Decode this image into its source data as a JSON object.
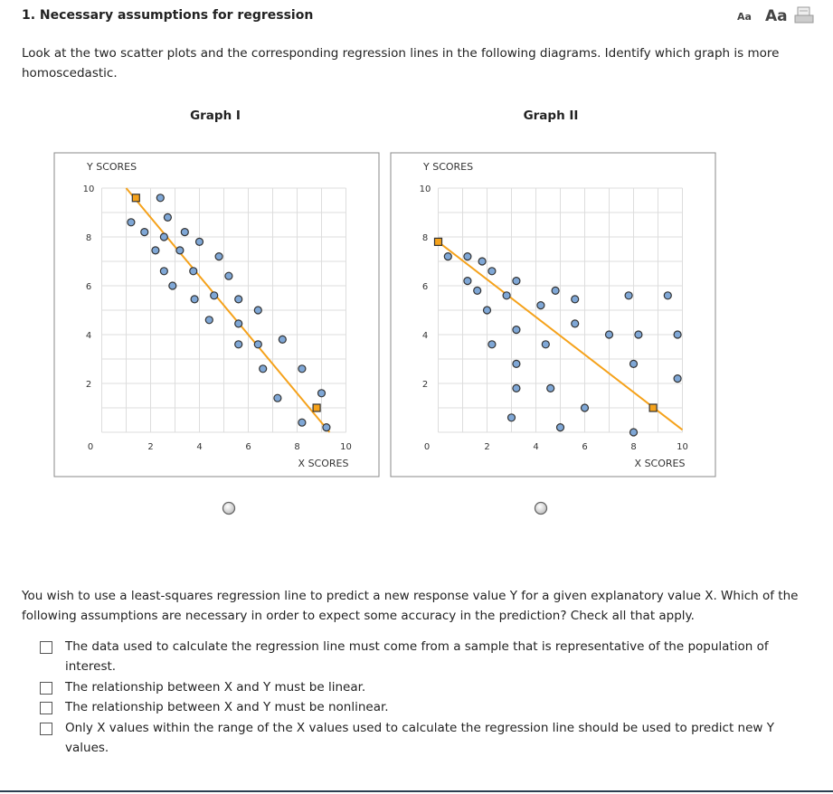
{
  "header": {
    "title": "1. Necessary assumptions for regression",
    "font_small": "Aa",
    "font_large": "Aa"
  },
  "question1": {
    "text": "Look at the two scatter plots and the corresponding regression lines in the following diagrams. Identify which graph is more homoscedastic.",
    "graphs": [
      {
        "type": "scatter",
        "title": "Graph I",
        "x_label": "X SCORES",
        "y_label": "Y SCORES",
        "x": [
          2.4,
          2.7,
          1.2,
          1.75,
          3.4,
          2.55,
          4.0,
          2.2,
          3.2,
          4.8,
          2.55,
          3.75,
          5.2,
          2.9,
          4.6,
          3.8,
          5.6,
          6.4,
          4.4,
          5.6,
          7.4,
          5.6,
          6.4,
          6.6,
          8.2,
          9.0,
          7.2,
          8.2,
          9.2
        ],
        "y": [
          9.6,
          8.8,
          8.6,
          8.2,
          8.2,
          8.0,
          7.8,
          7.45,
          7.45,
          7.2,
          6.6,
          6.6,
          6.4,
          6.0,
          5.6,
          5.45,
          5.45,
          5.0,
          4.6,
          4.45,
          3.8,
          3.6,
          3.6,
          2.6,
          2.6,
          1.6,
          1.4,
          0.4,
          0.2
        ],
        "color": "#7fa7d6",
        "line": {
          "x": [
            1.0,
            9.33
          ],
          "y": [
            10,
            0
          ],
          "color": "#f5a21b"
        },
        "markers": {
          "x": [
            1.4,
            8.8
          ],
          "y": [
            9.6,
            1.0
          ]
        },
        "xlim": [
          0,
          10
        ],
        "ylim": [
          0,
          10
        ],
        "xticks": [
          0,
          2,
          4,
          6,
          8,
          10
        ],
        "yticks": [
          2,
          4,
          6,
          8,
          10
        ],
        "grid_step": 1
      },
      {
        "type": "scatter",
        "title": "Graph II",
        "x_label": "X SCORES",
        "y_label": "Y SCORES",
        "x": [
          0.4,
          1.2,
          1.8,
          2.2,
          1.2,
          3.2,
          1.6,
          2.8,
          4.8,
          5.6,
          7.8,
          9.4,
          4.2,
          2.0,
          5.6,
          3.2,
          7.0,
          8.2,
          9.8,
          2.2,
          4.4,
          3.2,
          8.0,
          9.8,
          3.2,
          4.6,
          6.0,
          3.0,
          5.0,
          8.0
        ],
        "y": [
          7.2,
          7.2,
          7.0,
          6.6,
          6.2,
          6.2,
          5.8,
          5.6,
          5.8,
          5.45,
          5.6,
          5.6,
          5.2,
          5.0,
          4.45,
          4.2,
          4.0,
          4.0,
          4.0,
          3.6,
          3.6,
          2.8,
          2.8,
          2.2,
          1.8,
          1.8,
          1.0,
          0.6,
          0.2,
          0.0
        ],
        "color": "#7fa7d6",
        "line": {
          "x": [
            0,
            10
          ],
          "y": [
            7.8,
            0.1
          ],
          "color": "#f5a21b"
        },
        "markers": {
          "x": [
            0,
            8.8
          ],
          "y": [
            7.8,
            1.0
          ]
        },
        "xlim": [
          0,
          10
        ],
        "ylim": [
          0,
          10
        ],
        "xticks": [
          0,
          2,
          4,
          6,
          8,
          10
        ],
        "yticks": [
          2,
          4,
          6,
          8,
          10
        ],
        "grid_step": 1
      }
    ]
  },
  "question2": {
    "text": "You wish to use a least-squares regression line to predict a new response value Y for a given explanatory value X. Which of the following assumptions are necessary in order to expect some accuracy in the prediction? Check all that apply.",
    "options": [
      "The data used to calculate the regression line must come from a sample that is representative of the population of interest.",
      "The relationship between X and Y must be linear.",
      "The relationship between X and Y must be nonlinear.",
      "Only X values within the range of the X values used to calculate the regression line should be used to predict new Y values."
    ]
  }
}
